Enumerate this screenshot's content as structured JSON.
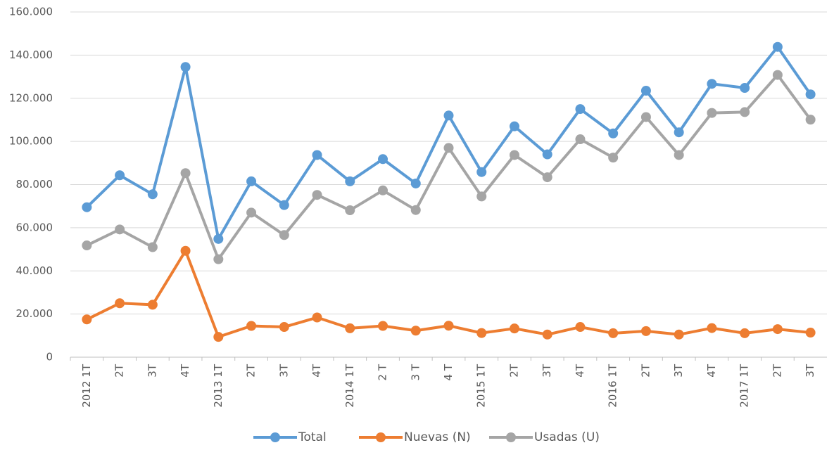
{
  "chart_data": {
    "type": "line",
    "categories": [
      "2012 1T",
      "2T",
      "3T",
      "4T",
      "2013 1T",
      "2T",
      "3T",
      "4T",
      "2014 1T",
      "2 T",
      "3 T",
      "4 T",
      "2015 1T",
      "2T",
      "3T",
      "4T",
      "2016 1T",
      "2T",
      "3T",
      "4T",
      "2017 1T",
      "2T",
      "3T"
    ],
    "series": [
      {
        "name": "Total",
        "color": "#5b9bd5",
        "values": [
          69500,
          84300,
          75500,
          134500,
          54800,
          81500,
          70500,
          93700,
          81500,
          91800,
          80500,
          112000,
          85800,
          107000,
          94000,
          115000,
          103700,
          123500,
          104200,
          126700,
          124800,
          143800,
          121800
        ]
      },
      {
        "name": "Nuevas (N)",
        "color": "#ed7d31",
        "values": [
          17500,
          25000,
          24300,
          49300,
          9400,
          14500,
          14000,
          18400,
          13400,
          14500,
          12300,
          14600,
          11200,
          13300,
          10500,
          14000,
          11100,
          12100,
          10500,
          13500,
          11100,
          13000,
          11400
        ]
      },
      {
        "name": "Usadas (U)",
        "color": "#a5a5a5",
        "values": [
          51800,
          59200,
          51000,
          85300,
          45400,
          67000,
          56600,
          75200,
          68100,
          77300,
          68200,
          97000,
          74500,
          93700,
          83400,
          101000,
          92500,
          111300,
          93700,
          113200,
          113600,
          130800,
          110100
        ]
      }
    ],
    "ylim": [
      0,
      160000
    ],
    "yticks": [
      0,
      {
        "value": 20000,
        "label": "20.000"
      },
      {
        "value": 40000,
        "label": "40.000"
      },
      {
        "value": 60000,
        "label": "60.000"
      },
      {
        "value": 80000,
        "label": "80.000"
      },
      {
        "value": 100000,
        "label": "100.000"
      },
      {
        "value": 120000,
        "label": "120.000"
      },
      {
        "value": 140000,
        "label": "140.000"
      },
      {
        "value": 160000,
        "label": "160.000"
      }
    ],
    "grid": true,
    "legend": "bottom"
  }
}
